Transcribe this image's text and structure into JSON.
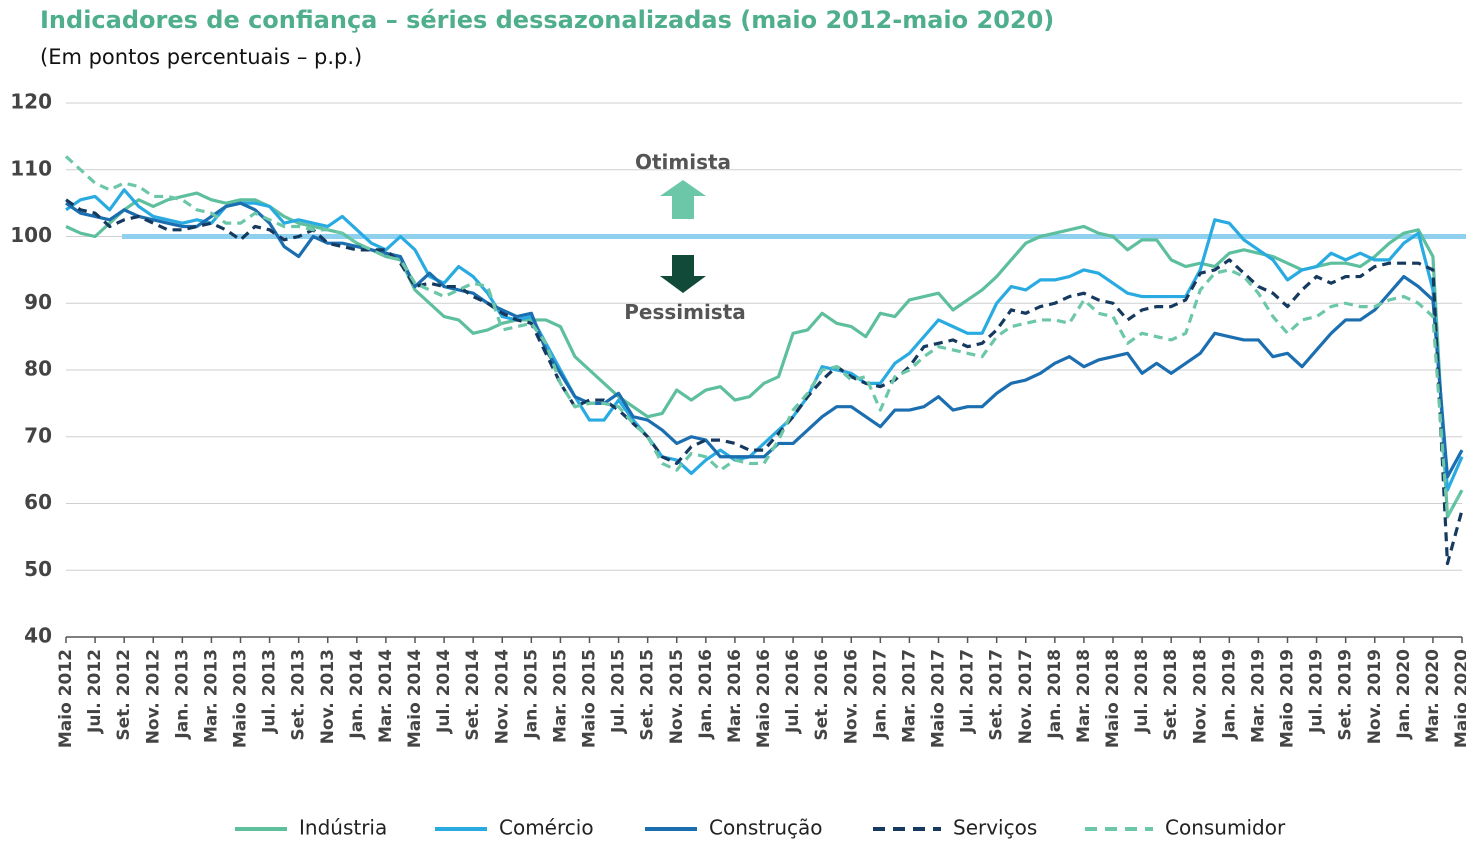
{
  "chart_data": {
    "type": "line",
    "title": "Indicadores de confiança – séries dessazonalizadas (maio 2012-maio 2020)",
    "subtitle": "(Em pontos percentuais – p.p.)",
    "annotations": [
      "Otimista",
      "Pessimista"
    ],
    "reference_line": 100,
    "ylim": [
      40,
      120
    ],
    "yticks": [
      40,
      50,
      60,
      70,
      80,
      90,
      100,
      110,
      120
    ],
    "grid": true,
    "categories": [
      "Maio 2012",
      null,
      "Jul. 2012",
      null,
      "Set. 2012",
      null,
      "Nov. 2012",
      null,
      "Jan. 2013",
      null,
      "Mar. 2013",
      null,
      "Maio 2013",
      null,
      "Jul. 2013",
      null,
      "Set. 2013",
      null,
      "Nov. 2013",
      null,
      "Jan. 2014",
      null,
      "Mar. 2014",
      null,
      "Maio 2014",
      null,
      "Jul. 2014",
      null,
      "Set. 2014",
      null,
      "Nov. 2014",
      null,
      "Jan. 2015",
      null,
      "Mar. 2015",
      null,
      "Maio 2015",
      null,
      "Jul. 2015",
      null,
      "Set. 2015",
      null,
      "Nov. 2015",
      null,
      "Jan. 2016",
      null,
      "Mar. 2016",
      null,
      "Maio 2016",
      null,
      "Jul. 2016",
      null,
      "Set. 2016",
      null,
      "Nov. 2016",
      null,
      "Jan. 2017",
      null,
      "Mar. 2017",
      null,
      "Maio 2017",
      null,
      "Jul. 2017",
      null,
      "Set. 2017",
      null,
      "Nov. 2017",
      null,
      "Jan. 2018",
      null,
      "Mar. 2018",
      null,
      "Maio 2018",
      null,
      "Jul. 2018",
      null,
      "Set. 2018",
      null,
      "Nov. 2018",
      null,
      "Jan. 2019",
      null,
      "Mar. 2019",
      null,
      "Maio 2019",
      null,
      "Jul. 2019",
      null,
      "Set. 2019",
      null,
      "Nov. 2019",
      null,
      "Jan. 2020",
      null,
      "Mar. 2020",
      null,
      "Maio 2020"
    ],
    "series": [
      {
        "name": "Indústria",
        "color": "#5dbf9c",
        "style": "solid",
        "values": [
          101.5,
          100.5,
          100,
          102,
          104,
          105.5,
          104.5,
          105.5,
          106,
          106.5,
          105.5,
          105,
          105.5,
          105.5,
          104.5,
          103,
          102,
          101.5,
          101,
          100.5,
          99,
          98,
          97,
          96.5,
          92,
          90,
          88,
          87.5,
          85.5,
          86,
          87,
          87.5,
          87.5,
          87.5,
          86.5,
          82,
          80,
          78,
          76,
          74.5,
          73,
          73.5,
          77,
          75.5,
          77,
          77.5,
          75.5,
          76,
          78,
          79,
          85.5,
          86,
          88.5,
          87,
          86.5,
          85,
          88.5,
          88,
          90.5,
          91,
          91.5,
          89,
          90.5,
          92,
          94,
          96.5,
          99,
          100,
          100.5,
          101,
          101.5,
          100.5,
          100,
          98,
          99.5,
          99.5,
          96.5,
          95.5,
          96,
          95.5,
          97.5,
          98,
          97.5,
          97,
          96,
          95,
          95.5,
          96,
          96,
          95.5,
          97,
          99,
          100.5,
          101,
          97,
          58,
          62
        ]
      },
      {
        "name": "Comércio",
        "color": "#29abe2",
        "style": "solid",
        "values": [
          104,
          105.5,
          106,
          104,
          107,
          104.5,
          103,
          102.5,
          102,
          102.5,
          102,
          104.5,
          105,
          105,
          104.5,
          102,
          102.5,
          102,
          101.5,
          103,
          101,
          99,
          98,
          100,
          98,
          94,
          93,
          95.5,
          94,
          91.5,
          88,
          87.5,
          88,
          84,
          80,
          76,
          72.5,
          72.5,
          75.5,
          72.5,
          70,
          67,
          66.5,
          64.5,
          66.5,
          68,
          66.5,
          67,
          69,
          71,
          73,
          76,
          80.5,
          80,
          79.5,
          78,
          78,
          81,
          82.5,
          85,
          87.5,
          86.5,
          85.5,
          85.5,
          90,
          92.5,
          92,
          93.5,
          93.5,
          94,
          95,
          94.5,
          93,
          91.5,
          91,
          91,
          91,
          91,
          95,
          102.5,
          102,
          99.5,
          98,
          96.5,
          93.5,
          95,
          95.5,
          97.5,
          96.5,
          97.5,
          96.5,
          96.5,
          99,
          100.5,
          92,
          62,
          67
        ]
      },
      {
        "name": "Construção",
        "color": "#1b6eb0",
        "style": "solid",
        "values": [
          105,
          103.5,
          103,
          102.5,
          104,
          103,
          102.5,
          102,
          101.5,
          101.5,
          103,
          104.5,
          105,
          104,
          102,
          98.5,
          97,
          100,
          99,
          99,
          98.5,
          98,
          97.5,
          97,
          92.5,
          94.5,
          92.5,
          92,
          91.5,
          90,
          89,
          88,
          88.5,
          83,
          79.5,
          76,
          75,
          75,
          76.5,
          73,
          72.5,
          71,
          69,
          70,
          69.5,
          67,
          67,
          67,
          67,
          69,
          69,
          71,
          73,
          74.5,
          74.5,
          73,
          71.5,
          74,
          74,
          74.5,
          76,
          74,
          74.5,
          74.5,
          76.5,
          78,
          78.5,
          79.5,
          81,
          82,
          80.5,
          81.5,
          82,
          82.5,
          79.5,
          81,
          79.5,
          81,
          82.5,
          85.5,
          85,
          84.5,
          84.5,
          82,
          82.5,
          80.5,
          83,
          85.5,
          87.5,
          87.5,
          89,
          91.5,
          94,
          92.5,
          90.5,
          64,
          68
        ]
      },
      {
        "name": "Serviços",
        "color": "#163a5f",
        "style": "dashed",
        "values": [
          105.5,
          104,
          103.5,
          101.5,
          102.5,
          103,
          102,
          101,
          101,
          101.5,
          102,
          101,
          99.5,
          101.5,
          101,
          99.5,
          100,
          101,
          99,
          98.5,
          98,
          98,
          98,
          96,
          92.5,
          93,
          92.5,
          92.5,
          91,
          90,
          88.5,
          87.5,
          87,
          82.5,
          78,
          74.5,
          75.5,
          75.5,
          74,
          72,
          70,
          67,
          66,
          68.5,
          69.5,
          69.5,
          69,
          68,
          68,
          70.5,
          73,
          76,
          78.5,
          80.5,
          79,
          78,
          77.5,
          78.5,
          80.5,
          83.5,
          84,
          84.5,
          83.5,
          84,
          86,
          89,
          88.5,
          89.5,
          90,
          91,
          91.5,
          90.5,
          90,
          87.5,
          89,
          89.5,
          89.5,
          90.5,
          94.5,
          95,
          96.5,
          94.5,
          92.5,
          91.5,
          89.5,
          92,
          94,
          93,
          94,
          94,
          95.5,
          96,
          96,
          96,
          95,
          51,
          59
        ]
      },
      {
        "name": "Consumidor",
        "color": "#6cc7a8",
        "style": "dashed",
        "values": [
          112,
          110,
          108,
          107,
          108,
          107.5,
          106,
          106,
          105.5,
          104,
          103.5,
          102,
          102,
          103.5,
          102.5,
          101.5,
          101.5,
          101,
          101,
          100.5,
          99,
          98,
          97,
          96.5,
          93,
          92,
          91,
          92,
          93,
          92.5,
          86,
          86.5,
          87,
          84,
          78,
          74.5,
          75,
          75,
          74.5,
          72,
          70,
          66,
          65,
          67.5,
          67,
          65,
          66.5,
          66,
          66,
          69.5,
          74,
          76.5,
          80,
          80.5,
          78.5,
          79,
          74,
          79,
          80,
          82,
          83.5,
          83,
          82.5,
          82,
          85,
          86.5,
          87,
          87.5,
          87.5,
          87,
          90.5,
          88.5,
          88,
          84,
          85.5,
          85,
          84.5,
          85.5,
          92,
          94.5,
          95,
          94,
          91.5,
          88,
          85.5,
          87.5,
          88,
          89.5,
          90,
          89.5,
          89.5,
          90.5,
          91,
          90,
          88,
          58,
          62
        ]
      }
    ]
  }
}
